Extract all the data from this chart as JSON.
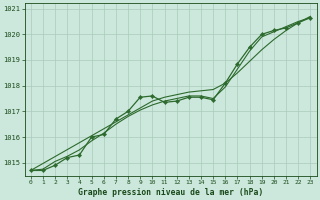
{
  "xlabel": "Graphe pression niveau de la mer (hPa)",
  "x": [
    0,
    1,
    2,
    3,
    4,
    5,
    6,
    7,
    8,
    9,
    10,
    11,
    12,
    13,
    14,
    15,
    16,
    17,
    18,
    19,
    20,
    21,
    22,
    23
  ],
  "y_main": [
    1014.7,
    1014.7,
    1014.9,
    1015.2,
    1015.3,
    1016.0,
    1016.1,
    1016.7,
    1017.0,
    1017.55,
    1017.6,
    1017.35,
    1017.4,
    1017.55,
    1017.55,
    1017.45,
    1018.1,
    1018.85,
    1019.5,
    1020.0,
    1020.15,
    1020.25,
    1020.45,
    1020.65
  ],
  "y_smooth": [
    1014.7,
    1014.75,
    1015.05,
    1015.25,
    1015.5,
    1015.85,
    1016.15,
    1016.5,
    1016.8,
    1017.05,
    1017.25,
    1017.4,
    1017.5,
    1017.6,
    1017.6,
    1017.5,
    1017.95,
    1018.65,
    1019.35,
    1019.9,
    1020.1,
    1020.3,
    1020.5,
    1020.65
  ],
  "y_trend": [
    1014.7,
    1014.97,
    1015.24,
    1015.51,
    1015.78,
    1016.05,
    1016.32,
    1016.59,
    1016.86,
    1017.13,
    1017.4,
    1017.55,
    1017.65,
    1017.75,
    1017.8,
    1017.85,
    1018.1,
    1018.5,
    1018.95,
    1019.4,
    1019.8,
    1020.15,
    1020.45,
    1020.7
  ],
  "line_color": "#2d6a2d",
  "bg_color": "#cce8dc",
  "grid_color": "#aacabc",
  "text_color": "#1a4a1a",
  "ylim": [
    1014.5,
    1021.2
  ],
  "yticks": [
    1015,
    1016,
    1017,
    1018,
    1019,
    1020,
    1021
  ],
  "xlim": [
    -0.5,
    23.5
  ],
  "xticks": [
    0,
    1,
    2,
    3,
    4,
    5,
    6,
    7,
    8,
    9,
    10,
    11,
    12,
    13,
    14,
    15,
    16,
    17,
    18,
    19,
    20,
    21,
    22,
    23
  ]
}
